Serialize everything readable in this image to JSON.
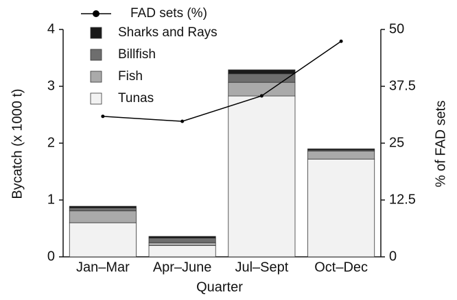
{
  "chart_data": {
    "type": "bar",
    "stacked": true,
    "xlabel": "Quarter",
    "ylabel": "Bycatch (x 1000 t)",
    "y2label": "% of FAD sets",
    "categories": [
      "Jan–Mar",
      "Apr–June",
      "Jul–Sept",
      "Oct–Dec"
    ],
    "series": [
      {
        "name": "Tunas",
        "color": "#f2f2f2",
        "values": [
          0.6,
          0.2,
          2.83,
          1.72
        ]
      },
      {
        "name": "Fish",
        "color": "#aaaaaa",
        "values": [
          0.21,
          0.05,
          0.24,
          0.14
        ]
      },
      {
        "name": "Billfish",
        "color": "#6e6e6e",
        "values": [
          0.05,
          0.08,
          0.15,
          0.02
        ]
      },
      {
        "name": "Sharks and Rays",
        "color": "#1a1a1a",
        "values": [
          0.03,
          0.03,
          0.07,
          0.02
        ]
      },
      {
        "name": "FAD sets (%)",
        "color": "#000000",
        "type": "line",
        "axis": "y2",
        "values": [
          30.9,
          29.8,
          35.4,
          47.4
        ]
      }
    ],
    "ylim": [
      0,
      4
    ],
    "yticks": [
      0,
      1,
      2,
      3,
      4
    ],
    "y2lim": [
      0,
      50
    ],
    "y2ticks": [
      0,
      12.5,
      25,
      37.5,
      50
    ]
  }
}
